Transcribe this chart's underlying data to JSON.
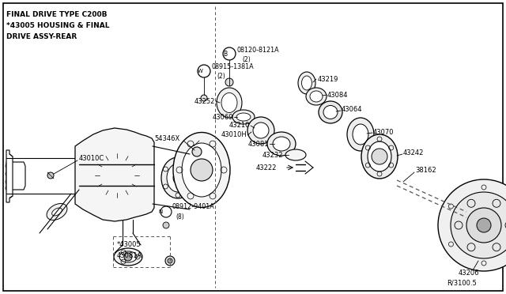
{
  "bg_color": "#ffffff",
  "border_color": "#000000",
  "line_color": "#000000",
  "gray": "#888888",
  "light_gray": "#cccccc",
  "header_lines": [
    "FINAL DRIVE TYPE C200B",
    "*43005 HOUSING & FINAL",
    "DRIVE ASSY-REAR"
  ],
  "ref_code": "R/3100.5",
  "figsize": [
    6.4,
    3.72
  ],
  "dpi": 100
}
